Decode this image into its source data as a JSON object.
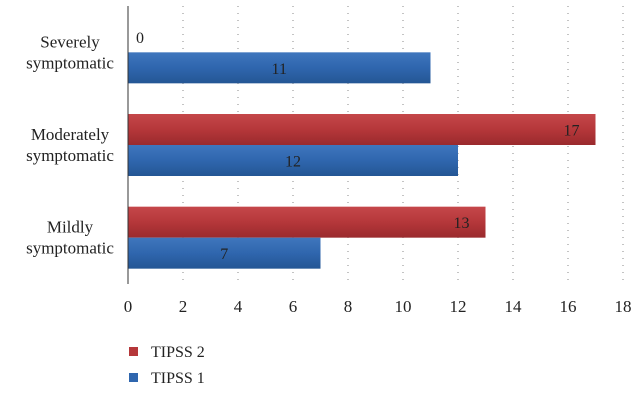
{
  "chart_data": {
    "type": "bar",
    "orientation": "horizontal",
    "categories": [
      "Severely symptomatic",
      "Moderately symptomatic",
      "Mildly symptomatic"
    ],
    "category_lines": [
      [
        "Severely",
        "symptomatic"
      ],
      [
        "Moderately",
        "symptomatic"
      ],
      [
        "Mildly",
        "symptomatic"
      ]
    ],
    "series": [
      {
        "name": "TIPSS 2",
        "color": "#b5373a",
        "values": [
          0,
          17,
          13
        ]
      },
      {
        "name": "TIPSS 1",
        "color": "#2f66ae",
        "values": [
          11,
          12,
          7
        ]
      }
    ],
    "xlim": [
      0,
      18
    ],
    "xticks": [
      0,
      2,
      4,
      6,
      8,
      10,
      12,
      14,
      16,
      18
    ],
    "grid": "vertical dotted",
    "legend_position": "bottom-left",
    "title": "",
    "xlabel": "",
    "ylabel": ""
  }
}
